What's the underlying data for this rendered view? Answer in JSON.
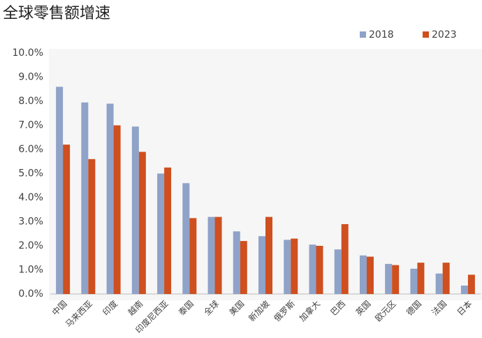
{
  "chart_data": {
    "type": "bar",
    "title": "全球零售额增速",
    "categories": [
      "中国",
      "马来西亚",
      "印度",
      "越南",
      "印度尼西亚",
      "泰国",
      "全球",
      "美国",
      "新加坡",
      "俄罗斯",
      "加拿大",
      "巴西",
      "英国",
      "欧元区",
      "德国",
      "法国",
      "日本"
    ],
    "series": [
      {
        "name": "2018",
        "color": "#8fa2c8",
        "values": [
          8.6,
          7.95,
          7.9,
          6.95,
          5.0,
          4.6,
          3.2,
          2.6,
          2.4,
          2.25,
          2.05,
          1.85,
          1.6,
          1.25,
          1.05,
          0.85,
          0.35
        ]
      },
      {
        "name": "2023",
        "color": "#cf4f1f",
        "values": [
          6.2,
          5.6,
          7.0,
          5.9,
          5.25,
          3.15,
          3.2,
          2.2,
          3.2,
          2.3,
          2.0,
          2.9,
          1.55,
          1.2,
          1.3,
          1.3,
          0.8
        ]
      }
    ],
    "ylim": [
      0,
      10
    ],
    "yticks": [
      {
        "value": 0,
        "label": "0.0%"
      },
      {
        "value": 1,
        "label": "1.0%"
      },
      {
        "value": 2,
        "label": "2.0%"
      },
      {
        "value": 3,
        "label": "3.0%"
      },
      {
        "value": 4,
        "label": "4.0%"
      },
      {
        "value": 5,
        "label": "5.0%"
      },
      {
        "value": 6,
        "label": "6.0%"
      },
      {
        "value": 7,
        "label": "7.0%"
      },
      {
        "value": 8,
        "label": "8.0%"
      },
      {
        "value": 9,
        "label": "9.0%"
      },
      {
        "value": 10,
        "label": "10.0%"
      }
    ],
    "grid": false,
    "legend": "top-right"
  }
}
